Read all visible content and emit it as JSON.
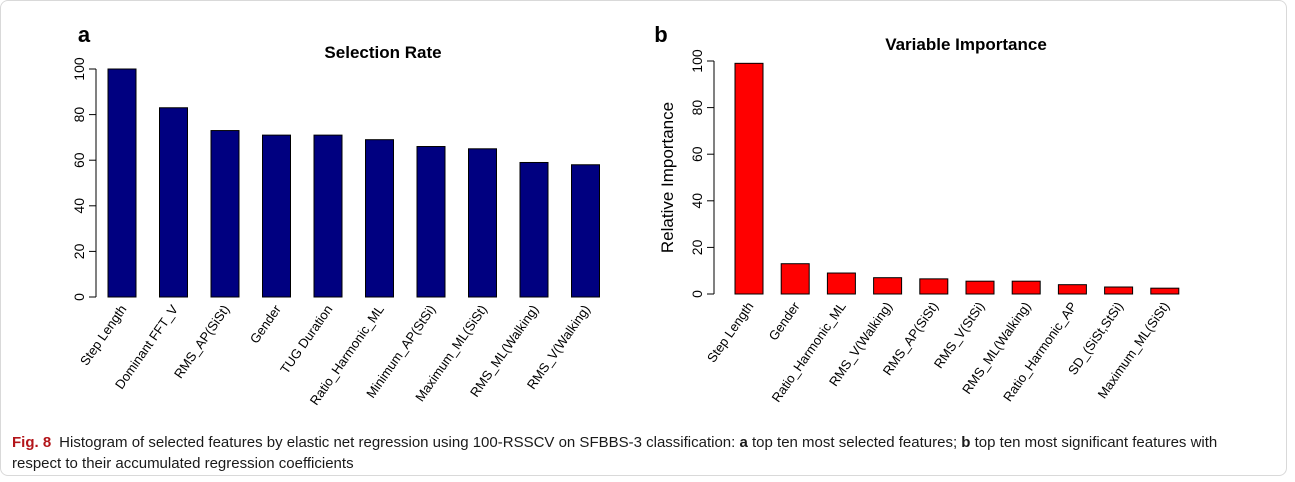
{
  "chart_data": [
    {
      "type": "bar",
      "panel_label": "a",
      "title": "Selection Rate",
      "xlabel": "",
      "ylabel": "",
      "ylim": [
        0,
        100
      ],
      "yticks": [
        0,
        20,
        40,
        60,
        80,
        100
      ],
      "bar_color": "#000080",
      "categories": [
        "Step Length",
        "Dominant FFT_V",
        "RMS_AP(SiSt)",
        "Gender",
        "TUG Duration",
        "Ratio_Harmonic_ML",
        "Minimum_AP(StSi)",
        "Maximum_ML(SiSt)",
        "RMS_ML(Walking)",
        "RMS_V(Walking)"
      ],
      "values": [
        100,
        83,
        73,
        71,
        71,
        69,
        66,
        65,
        59,
        58
      ]
    },
    {
      "type": "bar",
      "panel_label": "b",
      "title": "Variable Importance",
      "xlabel": "",
      "ylabel": "Relative Importance",
      "ylim": [
        0,
        100
      ],
      "yticks": [
        0,
        20,
        40,
        60,
        80,
        100
      ],
      "bar_color": "#ff0000",
      "categories": [
        "Step Length",
        "Gender",
        "Ratio_Harmonic_ML",
        "RMS_V(Walking)",
        "RMS_AP(SiSt)",
        "RMS_V(StSi)",
        "RMS_ML(Walking)",
        "Ratio_Harmonic_AP",
        "SD_(SiSt,StSi)",
        "Maximum_ML(SiSt)"
      ],
      "values": [
        99,
        13,
        9,
        7,
        6.5,
        5.5,
        5.5,
        4,
        3,
        2.5
      ]
    }
  ],
  "caption": {
    "fig_label": "Fig. 8",
    "part1": "Histogram of selected features by elastic net regression using 100-RSSCV on SFBBS-3 classification: ",
    "a_label": "a",
    "part2": " top ten most selected features; ",
    "b_label": "b",
    "part3": " top ten most significant features with respect to their accumulated regression coefficients"
  }
}
